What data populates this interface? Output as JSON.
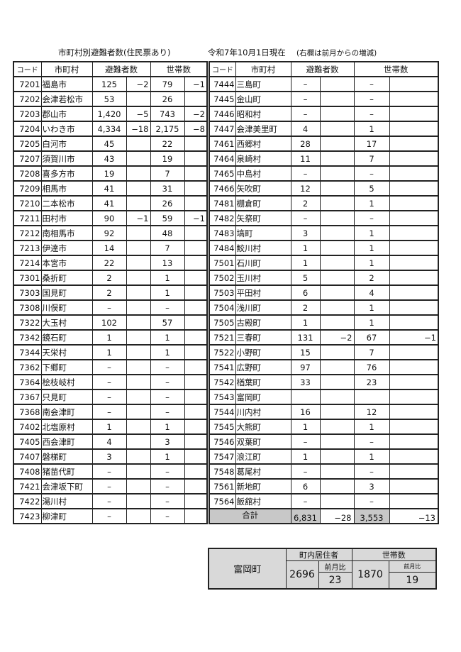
{
  "header": {
    "title": "市町村別避難者数(住民票あり)",
    "date": "令和7年10月1日現在",
    "note": "(右欄は前月からの増減)"
  },
  "columns": {
    "code": "コード",
    "name": "市町村",
    "evacuees": "避難者数",
    "households": "世帯数"
  },
  "left_rows": [
    [
      "7201",
      "福島市",
      "125",
      "−2",
      "79",
      "−1"
    ],
    [
      "7202",
      "会津若松市",
      "53",
      "",
      "26",
      ""
    ],
    [
      "7203",
      "郡山市",
      "1,420",
      "−5",
      "743",
      "−2"
    ],
    [
      "7204",
      "いわき市",
      "4,334",
      "−18",
      "2,175",
      "−8"
    ],
    [
      "7205",
      "白河市",
      "45",
      "",
      "22",
      ""
    ],
    [
      "7207",
      "須賀川市",
      "43",
      "",
      "19",
      ""
    ],
    [
      "7208",
      "喜多方市",
      "19",
      "",
      "7",
      ""
    ],
    [
      "7209",
      "相馬市",
      "41",
      "",
      "31",
      ""
    ],
    [
      "7210",
      "二本松市",
      "41",
      "",
      "26",
      ""
    ],
    [
      "7211",
      "田村市",
      "90",
      "−1",
      "59",
      "−1"
    ],
    [
      "7212",
      "南相馬市",
      "92",
      "",
      "48",
      ""
    ],
    [
      "7213",
      "伊達市",
      "14",
      "",
      "7",
      ""
    ],
    [
      "7214",
      "本宮市",
      "22",
      "",
      "13",
      ""
    ],
    [
      "7301",
      "桑折町",
      "2",
      "",
      "1",
      ""
    ],
    [
      "7303",
      "国見町",
      "2",
      "",
      "1",
      ""
    ],
    [
      "7308",
      "川俣町",
      "–",
      "",
      "–",
      ""
    ],
    [
      "7322",
      "大玉村",
      "102",
      "",
      "57",
      ""
    ],
    [
      "7342",
      "鏡石町",
      "1",
      "",
      "1",
      ""
    ],
    [
      "7344",
      "天栄村",
      "1",
      "",
      "1",
      ""
    ],
    [
      "7362",
      "下郷町",
      "–",
      "",
      "–",
      ""
    ],
    [
      "7364",
      "桧枝岐村",
      "–",
      "",
      "–",
      ""
    ],
    [
      "7367",
      "只見町",
      "–",
      "",
      "–",
      ""
    ],
    [
      "7368",
      "南会津町",
      "–",
      "",
      "–",
      ""
    ],
    [
      "7402",
      "北塩原村",
      "1",
      "",
      "1",
      ""
    ],
    [
      "7405",
      "西会津町",
      "4",
      "",
      "3",
      ""
    ],
    [
      "7407",
      "磐梯町",
      "3",
      "",
      "1",
      ""
    ],
    [
      "7408",
      "猪苗代町",
      "–",
      "",
      "–",
      ""
    ],
    [
      "7421",
      "会津坂下町",
      "–",
      "",
      "–",
      ""
    ],
    [
      "7422",
      "湯川村",
      "–",
      "",
      "–",
      ""
    ],
    [
      "7423",
      "柳津町",
      "–",
      "",
      "–",
      ""
    ]
  ],
  "right_rows": [
    [
      "7444",
      "三島町",
      "–",
      "",
      "–",
      ""
    ],
    [
      "7445",
      "金山町",
      "–",
      "",
      "–",
      ""
    ],
    [
      "7446",
      "昭和村",
      "–",
      "",
      "–",
      ""
    ],
    [
      "7447",
      "会津美里町",
      "4",
      "",
      "1",
      ""
    ],
    [
      "7461",
      "西郷村",
      "28",
      "",
      "17",
      ""
    ],
    [
      "7464",
      "泉崎村",
      "11",
      "",
      "7",
      ""
    ],
    [
      "7465",
      "中島村",
      "–",
      "",
      "–",
      ""
    ],
    [
      "7466",
      "矢吹町",
      "12",
      "",
      "5",
      ""
    ],
    [
      "7481",
      "棚倉町",
      "2",
      "",
      "1",
      ""
    ],
    [
      "7482",
      "矢祭町",
      "–",
      "",
      "–",
      ""
    ],
    [
      "7483",
      "塙町",
      "3",
      "",
      "1",
      ""
    ],
    [
      "7484",
      "鮫川村",
      "1",
      "",
      "1",
      ""
    ],
    [
      "7501",
      "石川町",
      "1",
      "",
      "1",
      ""
    ],
    [
      "7502",
      "玉川村",
      "5",
      "",
      "2",
      ""
    ],
    [
      "7503",
      "平田村",
      "6",
      "",
      "4",
      ""
    ],
    [
      "7504",
      "浅川町",
      "2",
      "",
      "1",
      ""
    ],
    [
      "7505",
      "古殿町",
      "1",
      "",
      "1",
      ""
    ],
    [
      "7521",
      "三春町",
      "131",
      "−2",
      "67",
      "−1"
    ],
    [
      "7522",
      "小野町",
      "15",
      "",
      "7",
      ""
    ],
    [
      "7541",
      "広野町",
      "97",
      "",
      "76",
      ""
    ],
    [
      "7542",
      "楢葉町",
      "33",
      "",
      "23",
      ""
    ],
    [
      "7543",
      "富岡町",
      "",
      "",
      "",
      ""
    ],
    [
      "7544",
      "川内村",
      "16",
      "",
      "12",
      ""
    ],
    [
      "7545",
      "大熊町",
      "1",
      "",
      "1",
      ""
    ],
    [
      "7546",
      "双葉町",
      "–",
      "",
      "–",
      ""
    ],
    [
      "7547",
      "浪江町",
      "1",
      "",
      "1",
      ""
    ],
    [
      "7548",
      "葛尾村",
      "–",
      "",
      "–",
      ""
    ],
    [
      "7561",
      "新地町",
      "6",
      "",
      "3",
      ""
    ],
    [
      "7564",
      "飯舘村",
      "–",
      "",
      "–",
      ""
    ]
  ],
  "total": {
    "label": "合計",
    "evacuees": "6,831",
    "evacuees_diff": "−28",
    "households": "3,553",
    "households_diff": "−13"
  },
  "tomioka_box": {
    "name": "富岡町",
    "residents_label": "町内居住者",
    "residents": "2696",
    "residents_diff_label": "前月比",
    "residents_diff": "23",
    "households_label": "世帯数",
    "households": "1870",
    "households_diff_label": "前月比",
    "households_diff": "19"
  }
}
